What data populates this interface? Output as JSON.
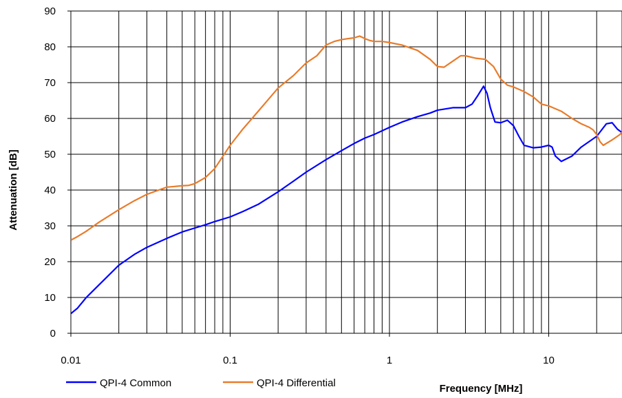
{
  "chart_data": {
    "type": "line",
    "xlabel": "Frequency [MHz]",
    "ylabel": "Attenuation [dB]",
    "x_scale": "log",
    "xlim": [
      0.01,
      30
    ],
    "ylim": [
      0,
      90
    ],
    "x_ticks": [
      0.01,
      0.1,
      1,
      10
    ],
    "x_tick_labels": [
      "0.01",
      "0.1",
      "1",
      "10"
    ],
    "y_ticks": [
      0,
      10,
      20,
      30,
      40,
      50,
      60,
      70,
      80,
      90
    ],
    "y_tick_labels": [
      "0",
      "10",
      "20",
      "30",
      "40",
      "50",
      "60",
      "70",
      "80",
      "90"
    ],
    "grid": true,
    "legend_position": "bottom-left",
    "series": [
      {
        "name": "QPI-4 Common",
        "color": "#0000ff",
        "x": [
          0.01,
          0.011,
          0.0125,
          0.015,
          0.02,
          0.025,
          0.03,
          0.04,
          0.05,
          0.06,
          0.07,
          0.08,
          0.1,
          0.12,
          0.15,
          0.2,
          0.25,
          0.3,
          0.4,
          0.5,
          0.6,
          0.7,
          0.8,
          1.0,
          1.2,
          1.5,
          1.8,
          2.0,
          2.5,
          3.0,
          3.3,
          3.6,
          3.9,
          4.1,
          4.3,
          4.6,
          5.0,
          5.5,
          6.0,
          6.5,
          7.0,
          8.0,
          9.0,
          10.0,
          10.5,
          11.0,
          12.0,
          14.0,
          16.0,
          20.0,
          23.0,
          25.0,
          27.0,
          30.0
        ],
        "values": [
          5.5,
          7,
          10,
          13.5,
          19,
          22,
          24,
          26.5,
          28.3,
          29.4,
          30.3,
          31.2,
          32.5,
          34,
          36,
          39.5,
          42.5,
          45,
          48.5,
          51,
          53,
          54.5,
          55.5,
          57.5,
          59,
          60.5,
          61.5,
          62.3,
          63,
          63,
          64,
          66.5,
          69,
          67,
          63,
          59,
          58.8,
          59.5,
          58,
          55,
          52.5,
          51.8,
          52,
          52.5,
          52,
          49.5,
          48,
          49.5,
          52,
          55,
          58.5,
          58.8,
          57,
          55.5
        ]
      },
      {
        "name": "QPI-4 Differential",
        "color": "#e97b2a",
        "x": [
          0.01,
          0.011,
          0.0125,
          0.015,
          0.02,
          0.025,
          0.03,
          0.04,
          0.05,
          0.055,
          0.06,
          0.07,
          0.08,
          0.1,
          0.12,
          0.15,
          0.2,
          0.25,
          0.3,
          0.35,
          0.4,
          0.45,
          0.5,
          0.55,
          0.6,
          0.65,
          0.7,
          0.75,
          0.8,
          0.9,
          1.0,
          1.2,
          1.5,
          1.8,
          2.0,
          2.2,
          2.5,
          2.8,
          3.0,
          3.5,
          4.0,
          4.5,
          5.0,
          5.5,
          6.0,
          7.0,
          8.0,
          9.0,
          10.0,
          12.0,
          14.0,
          16.0,
          18.0,
          19.0,
          20.0,
          21.0,
          22.0,
          25.0,
          28.0,
          30.0
        ],
        "values": [
          26,
          27,
          28.5,
          31,
          34.5,
          37,
          38.8,
          40.8,
          41.2,
          41.3,
          41.8,
          43.5,
          46,
          52.5,
          57,
          62,
          68.5,
          72,
          75.5,
          77.5,
          80.5,
          81.5,
          82,
          82.3,
          82.5,
          83,
          82.3,
          81.8,
          81.5,
          81.5,
          81.2,
          80.5,
          79,
          76.5,
          74.5,
          74.3,
          76,
          77.5,
          77.5,
          76.8,
          76.5,
          74.5,
          71,
          69.3,
          68.8,
          67.5,
          66,
          64,
          63.5,
          62,
          60,
          58.5,
          57.5,
          56.8,
          55.5,
          53.5,
          52.5,
          54,
          55.5,
          57
        ]
      }
    ]
  }
}
